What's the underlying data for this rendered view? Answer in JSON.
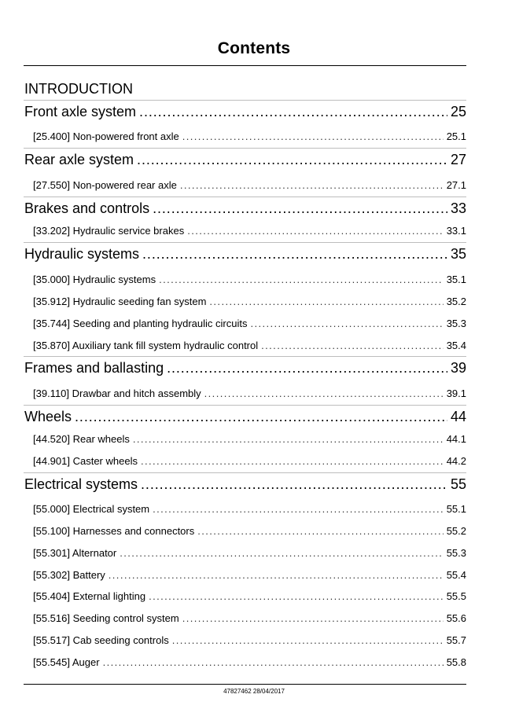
{
  "title": "Contents",
  "introduction": "INTRODUCTION",
  "chapters": [
    {
      "label": "Front axle system",
      "page": "25",
      "sections": [
        {
          "label": "[25.400] Non-powered front axle",
          "page": "25.1"
        }
      ]
    },
    {
      "label": "Rear axle system",
      "page": "27",
      "sections": [
        {
          "label": "[27.550] Non-powered rear axle",
          "page": "27.1"
        }
      ]
    },
    {
      "label": "Brakes and controls",
      "page": "33",
      "sections": [
        {
          "label": "[33.202] Hydraulic service brakes",
          "page": "33.1"
        }
      ]
    },
    {
      "label": "Hydraulic systems",
      "page": "35",
      "sections": [
        {
          "label": "[35.000] Hydraulic systems",
          "page": "35.1"
        },
        {
          "label": "[35.912] Hydraulic seeding fan system",
          "page": "35.2"
        },
        {
          "label": "[35.744] Seeding and planting hydraulic circuits",
          "page": "35.3"
        },
        {
          "label": "[35.870] Auxiliary tank fill system hydraulic control",
          "page": "35.4"
        }
      ]
    },
    {
      "label": "Frames and ballasting",
      "page": "39",
      "sections": [
        {
          "label": "[39.110] Drawbar and hitch assembly",
          "page": "39.1"
        }
      ]
    },
    {
      "label": "Wheels",
      "page": "44",
      "sections": [
        {
          "label": "[44.520] Rear wheels",
          "page": "44.1"
        },
        {
          "label": "[44.901] Caster wheels",
          "page": "44.2"
        }
      ]
    },
    {
      "label": "Electrical systems",
      "page": "55",
      "sections": [
        {
          "label": "[55.000] Electrical system",
          "page": "55.1"
        },
        {
          "label": "[55.100] Harnesses and connectors",
          "page": "55.2"
        },
        {
          "label": "[55.301] Alternator",
          "page": "55.3"
        },
        {
          "label": "[55.302] Battery",
          "page": "55.4"
        },
        {
          "label": "[55.404] External lighting",
          "page": "55.5"
        },
        {
          "label": "[55.516] Seeding control system",
          "page": "55.6"
        },
        {
          "label": "[55.517] Cab seeding controls",
          "page": "55.7"
        },
        {
          "label": "[55.545] Auger",
          "page": "55.8"
        }
      ]
    }
  ],
  "footer": "47827462 28/04/2017"
}
